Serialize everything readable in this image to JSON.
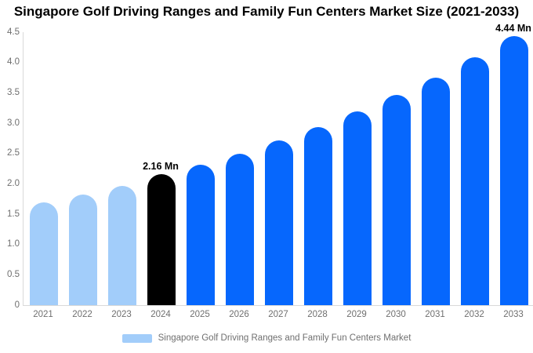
{
  "title": "Singapore Golf Driving Ranges and Family Fun Centers Market Size (2021-2033)",
  "legend": {
    "label": "Singapore Golf Driving Ranges and Family Fun Centers Market",
    "swatch_color": "#a2cdfa"
  },
  "colors": {
    "historical_bar": "#a2cdfa",
    "base_year_bar": "#000000",
    "forecast_bar": "#0667fd",
    "axis_text": "#6f6f6f",
    "axis_line": "#d9d9d9",
    "annotation_text": "#000000",
    "background": "#ffffff"
  },
  "chart_data": {
    "type": "bar",
    "title": "Singapore Golf Driving Ranges and Family Fun Centers Market Size (2021-2033)",
    "unit": "Mn",
    "categories": [
      "2021",
      "2022",
      "2023",
      "2024",
      "2025",
      "2026",
      "2027",
      "2028",
      "2029",
      "2030",
      "2031",
      "2032",
      "2033"
    ],
    "values": [
      1.7,
      1.82,
      1.97,
      2.16,
      2.32,
      2.5,
      2.72,
      2.94,
      3.2,
      3.47,
      3.75,
      4.09,
      4.44
    ],
    "bar_colors": [
      "#a2cdfa",
      "#a2cdfa",
      "#a2cdfa",
      "#000000",
      "#0667fd",
      "#0667fd",
      "#0667fd",
      "#0667fd",
      "#0667fd",
      "#0667fd",
      "#0667fd",
      "#0667fd",
      "#0667fd"
    ],
    "ylim": [
      0,
      4.5
    ],
    "ytick_labels": [
      "0",
      "0.5",
      "1.0",
      "1.5",
      "2.0",
      "2.5",
      "3.0",
      "3.5",
      "4.0",
      "4.5"
    ],
    "grid": false,
    "xlabel": "",
    "ylabel": "",
    "legend_position": "bottom",
    "legend_entries": [
      "Singapore Golf Driving Ranges and Family Fun Centers Market"
    ],
    "annotations": [
      {
        "category": "2024",
        "text": "2.16 Mn"
      },
      {
        "category": "2033",
        "text": "4.44 Mn"
      }
    ]
  }
}
